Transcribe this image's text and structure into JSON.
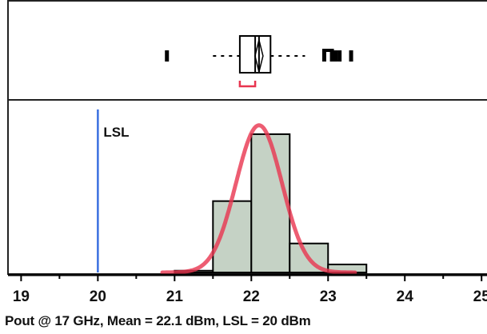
{
  "caption": "Pout @ 17 GHz, Mean = 22.1 dBm, LSL = 20 dBm",
  "chart_data": {
    "type": "bar",
    "subtype": "histogram-with-boxplot",
    "xlabel": "",
    "ylabel": "",
    "xlim": [
      18.85,
      25.05
    ],
    "x_ticks": [
      19,
      20,
      21,
      22,
      23,
      24,
      25
    ],
    "mean": 22.1,
    "lsl": {
      "label": "LSL",
      "value": 20
    },
    "bins": [
      {
        "x0": 21.0,
        "x1": 21.5,
        "value": 0.4
      },
      {
        "x0": 21.5,
        "x1": 22.0,
        "value": 16
      },
      {
        "x0": 22.0,
        "x1": 22.5,
        "value": 31
      },
      {
        "x0": 22.5,
        "x1": 23.0,
        "value": 6.5
      },
      {
        "x0": 23.0,
        "x1": 23.5,
        "value": 1.8
      }
    ],
    "ylim": [
      0,
      36
    ],
    "normal_fit": {
      "mean": 22.1,
      "sd": 0.3,
      "peak": 33
    },
    "boxplot": {
      "q1": 21.85,
      "median": 22.05,
      "q3": 22.25,
      "mean": 22.1,
      "whisker_low": 21.5,
      "whisker_high": 22.7,
      "shortest_half": [
        21.85,
        22.05
      ],
      "outliers": [
        20.9,
        22.95,
        23.05,
        23.1,
        23.15,
        23.3
      ]
    },
    "colors": {
      "bar_fill": "#c5d2c5",
      "bar_stroke": "#000000",
      "fit_curve": "#e8344f",
      "lsl_line": "#3a6fe0",
      "shortest_half": "#e8344f"
    },
    "grid": false
  }
}
